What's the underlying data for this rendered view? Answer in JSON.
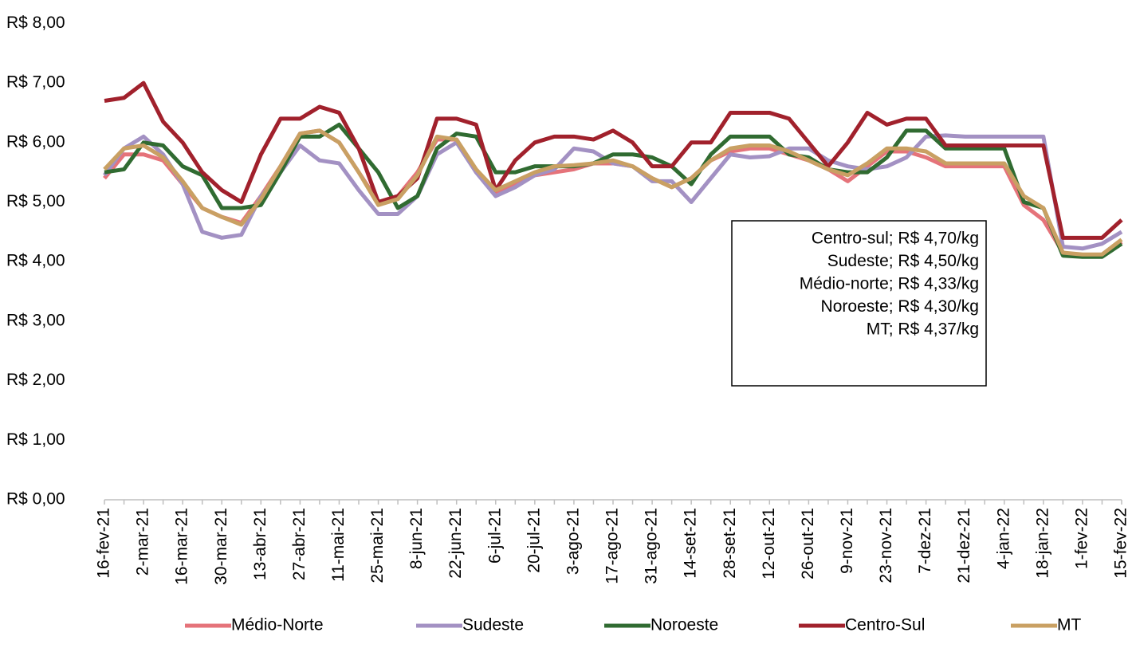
{
  "chart_data": {
    "type": "line",
    "categories": [
      "16-fev-21",
      null,
      "2-mar-21",
      null,
      "16-mar-21",
      null,
      "30-mar-21",
      null,
      "13-abr-21",
      null,
      "27-abr-21",
      null,
      "11-mai-21",
      null,
      "25-mai-21",
      null,
      "8-jun-21",
      null,
      "22-jun-21",
      null,
      "6-jul-21",
      null,
      "20-jul-21",
      null,
      "3-ago-21",
      null,
      "17-ago-21",
      null,
      "31-ago-21",
      null,
      "14-set-21",
      null,
      "28-set-21",
      null,
      "12-out-21",
      null,
      "26-out-21",
      null,
      "9-nov-21",
      null,
      "23-nov-21",
      null,
      "7-dez-21",
      null,
      "21-dez-21",
      null,
      "4-jan-22",
      null,
      "18-jan-22",
      null,
      "1-fev-22",
      null,
      "15-fev-22"
    ],
    "series": [
      {
        "name": "Médio-Norte",
        "color": "#e5737a",
        "values": [
          5.4,
          5.8,
          5.8,
          5.7,
          5.3,
          4.9,
          4.75,
          4.65,
          5.1,
          5.6,
          6.15,
          6.2,
          6.0,
          5.5,
          5.0,
          5.1,
          5.5,
          6.05,
          6.05,
          5.5,
          5.15,
          5.3,
          5.45,
          5.5,
          5.55,
          5.65,
          5.65,
          5.6,
          5.4,
          5.25,
          5.4,
          5.7,
          5.85,
          5.9,
          5.9,
          5.8,
          5.7,
          5.55,
          5.35,
          5.6,
          5.85,
          5.85,
          5.75,
          5.6,
          5.6,
          5.6,
          5.6,
          4.95,
          4.7,
          4.15,
          4.1,
          4.1,
          4.33
        ]
      },
      {
        "name": "Sudeste",
        "color": "#a391c3",
        "values": [
          5.45,
          5.9,
          6.1,
          5.8,
          5.3,
          4.5,
          4.4,
          4.45,
          5.1,
          5.5,
          5.95,
          5.7,
          5.65,
          5.2,
          4.8,
          4.8,
          5.1,
          5.8,
          6.0,
          5.5,
          5.1,
          5.25,
          5.45,
          5.55,
          5.9,
          5.85,
          5.65,
          5.6,
          5.35,
          5.35,
          5.0,
          5.4,
          5.8,
          5.75,
          5.77,
          5.9,
          5.9,
          5.7,
          5.6,
          5.55,
          5.6,
          5.75,
          6.1,
          6.12,
          6.1,
          6.1,
          6.1,
          6.1,
          6.1,
          4.25,
          4.22,
          4.3,
          4.5
        ]
      },
      {
        "name": "Noroeste",
        "color": "#306b31",
        "values": [
          5.5,
          5.55,
          6.0,
          5.95,
          5.6,
          5.45,
          4.9,
          4.9,
          4.95,
          5.5,
          6.1,
          6.1,
          6.3,
          5.9,
          5.5,
          4.9,
          5.1,
          5.9,
          6.15,
          6.1,
          5.5,
          5.5,
          5.6,
          5.6,
          5.6,
          5.65,
          5.8,
          5.8,
          5.75,
          5.6,
          5.3,
          5.8,
          6.1,
          6.1,
          6.1,
          5.8,
          5.75,
          5.55,
          5.5,
          5.5,
          5.75,
          6.2,
          6.2,
          5.9,
          5.9,
          5.9,
          5.9,
          5.0,
          4.9,
          4.1,
          4.08,
          4.08,
          4.3
        ]
      },
      {
        "name": "Centro-Sul",
        "color": "#a1212c",
        "values": [
          6.7,
          6.75,
          7.0,
          6.35,
          6.0,
          5.5,
          5.2,
          5.0,
          5.8,
          6.4,
          6.4,
          6.6,
          6.5,
          5.9,
          5.0,
          5.1,
          5.4,
          6.4,
          6.4,
          6.3,
          5.2,
          5.7,
          6.0,
          6.1,
          6.1,
          6.05,
          6.2,
          6.0,
          5.6,
          5.6,
          6.0,
          6.0,
          6.5,
          6.5,
          6.5,
          6.4,
          6.0,
          5.6,
          6.0,
          6.5,
          6.3,
          6.4,
          6.4,
          5.95,
          5.95,
          5.95,
          5.95,
          5.95,
          5.95,
          4.4,
          4.4,
          4.4,
          4.7
        ]
      },
      {
        "name": "MT",
        "color": "#c9a063",
        "values": [
          5.55,
          5.9,
          5.95,
          5.75,
          5.35,
          4.9,
          4.75,
          4.62,
          5.05,
          5.6,
          6.15,
          6.2,
          6.0,
          5.5,
          4.95,
          5.05,
          5.45,
          6.1,
          6.05,
          5.55,
          5.2,
          5.35,
          5.5,
          5.6,
          5.62,
          5.65,
          5.7,
          5.6,
          5.4,
          5.25,
          5.4,
          5.7,
          5.9,
          5.95,
          5.95,
          5.85,
          5.7,
          5.55,
          5.45,
          5.65,
          5.9,
          5.9,
          5.85,
          5.65,
          5.65,
          5.65,
          5.65,
          5.1,
          4.9,
          4.15,
          4.12,
          4.12,
          4.37
        ]
      }
    ],
    "ylim": [
      0,
      8
    ],
    "yticks": [
      {
        "value": 0,
        "label": "R$ 0,00"
      },
      {
        "value": 1,
        "label": "R$ 1,00"
      },
      {
        "value": 2,
        "label": "R$ 2,00"
      },
      {
        "value": 3,
        "label": "R$ 3,00"
      },
      {
        "value": 4,
        "label": "R$ 4,00"
      },
      {
        "value": 5,
        "label": "R$ 5,00"
      },
      {
        "value": 6,
        "label": "R$ 6,00"
      },
      {
        "value": 7,
        "label": "R$ 7,00"
      },
      {
        "value": 8,
        "label": "R$ 8,00"
      }
    ],
    "annotations": [
      "Centro-sul; R$ 4,70/kg",
      "Sudeste; R$ 4,50/kg",
      "Médio-norte; R$ 4,33/kg",
      "Noroeste; R$ 4,30/kg",
      "MT; R$ 4,37/kg"
    ],
    "legend": "bottom"
  }
}
